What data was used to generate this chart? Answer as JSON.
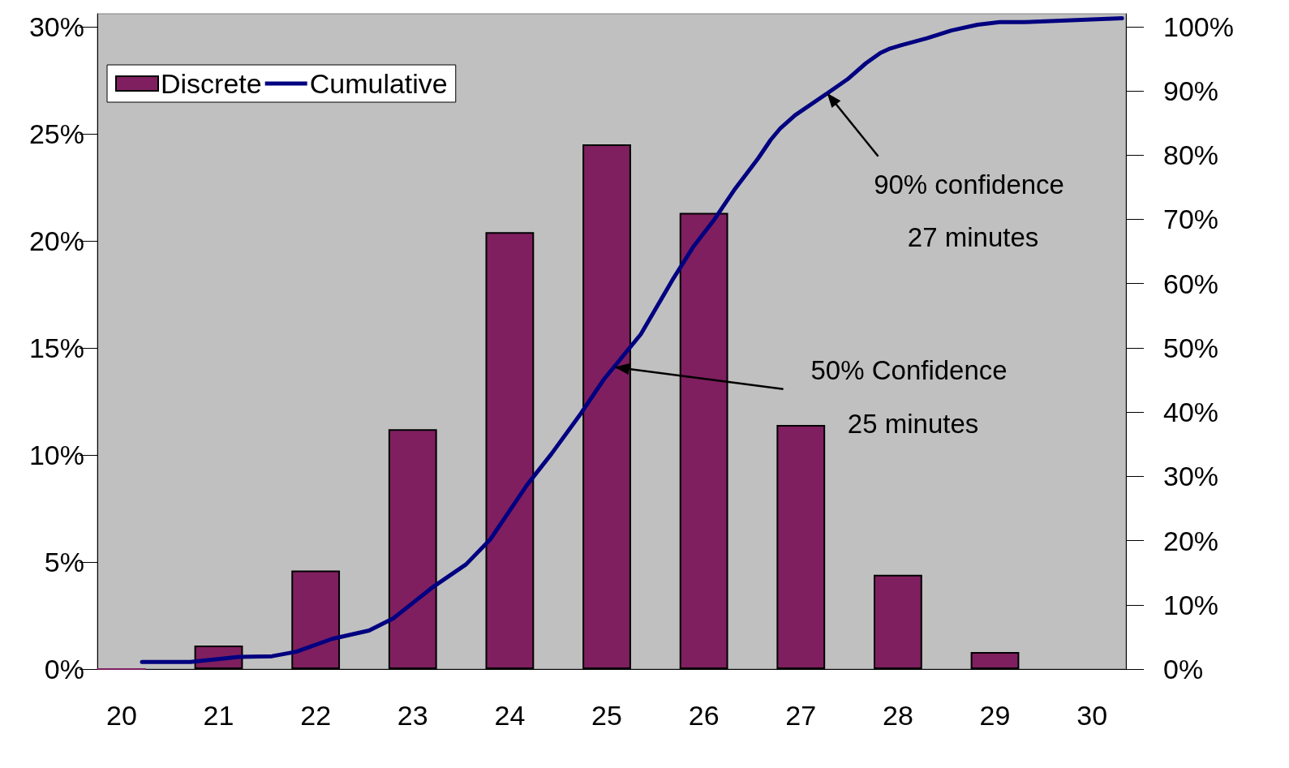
{
  "chart_data": {
    "type": "bar",
    "xlim": [
      19.75,
      30.35
    ],
    "xticks": [
      20,
      21,
      22,
      23,
      24,
      25,
      26,
      27,
      28,
      29,
      30
    ],
    "ylim": [
      0,
      30.6
    ],
    "yticks": [
      {
        "value": 0,
        "label": "0%"
      },
      {
        "value": 5,
        "label": "5%"
      },
      {
        "value": 10,
        "label": "10%"
      },
      {
        "value": 15,
        "label": "15%"
      },
      {
        "value": 20,
        "label": "20%"
      },
      {
        "value": 25,
        "label": "25%"
      },
      {
        "value": 30,
        "label": "30%"
      }
    ],
    "y2lim": [
      0,
      102
    ],
    "y2ticks": [
      {
        "value": 0,
        "label": "0%"
      },
      {
        "value": 10,
        "label": "10%"
      },
      {
        "value": 20,
        "label": "20%"
      },
      {
        "value": 30,
        "label": "30%"
      },
      {
        "value": 40,
        "label": "40%"
      },
      {
        "value": 50,
        "label": "50%"
      },
      {
        "value": 60,
        "label": "60%"
      },
      {
        "value": 70,
        "label": "70%"
      },
      {
        "value": 80,
        "label": "80%"
      },
      {
        "value": 90,
        "label": "90%"
      },
      {
        "value": 100,
        "label": "100%"
      }
    ],
    "legend": "top left",
    "grid": false,
    "series": [
      {
        "name": "Discrete",
        "color": "#7f1f5f",
        "x": [
          20,
          21,
          22,
          23,
          24,
          25,
          26,
          27,
          28,
          29
        ],
        "values": [
          0,
          1.1,
          4.6,
          11.2,
          20.4,
          24.5,
          21.3,
          11.4,
          4.4,
          0.8
        ]
      },
      {
        "name": "Cumulative",
        "type": "line",
        "axis": "y2",
        "color": "#000080",
        "x": [
          20.21,
          20.71,
          21.21,
          21.55,
          21.8,
          22.17,
          22.55,
          22.8,
          23.22,
          23.55,
          23.8,
          24.18,
          24.43,
          24.72,
          24.97,
          25.35,
          25.69,
          25.89,
          26.1,
          26.31,
          26.56,
          26.69,
          26.79,
          26.94,
          27.27,
          27.48,
          27.67,
          27.82,
          27.92,
          28.03,
          28.3,
          28.55,
          28.82,
          29.05,
          29.3,
          30.31
        ],
        "values": [
          1.1,
          1.1,
          1.9,
          2.0,
          2.7,
          4.7,
          6.0,
          7.9,
          12.9,
          16.3,
          20.2,
          28.7,
          33.5,
          39.5,
          45.1,
          52.1,
          60.9,
          65.7,
          69.8,
          74.5,
          79.5,
          82.4,
          84.2,
          86.2,
          89.6,
          91.8,
          94.3,
          95.9,
          96.6,
          97.1,
          98.2,
          99.4,
          100.3,
          100.7,
          100.7,
          101.3
        ]
      }
    ],
    "annotations": [
      {
        "text": "90% confidence\n27 minutes",
        "x": 27.27,
        "y": 26.9
      },
      {
        "text": "50% Confidence\n25 minutes",
        "x": 25.08,
        "y": 14.1
      }
    ]
  }
}
